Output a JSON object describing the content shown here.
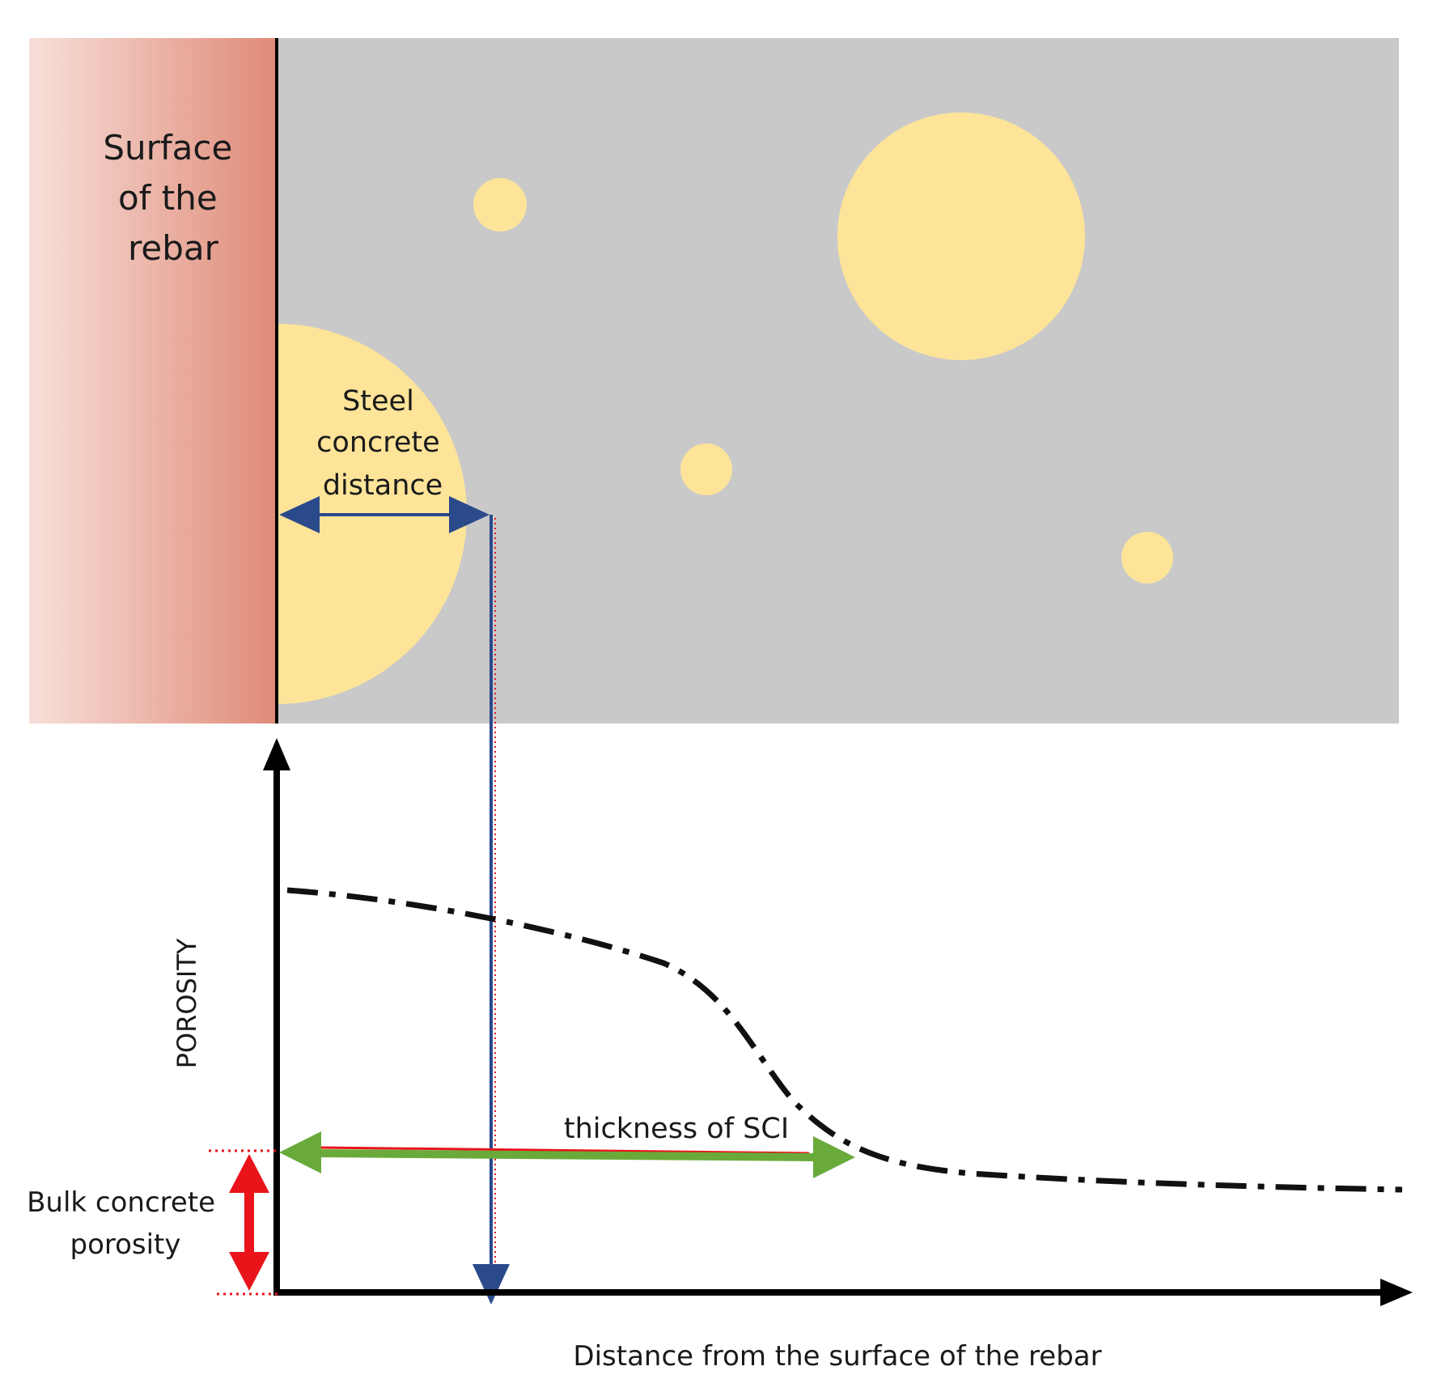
{
  "labels": {
    "rebar_surface": [
      "Surface",
      "of the",
      "rebar"
    ],
    "steel_concrete_distance": [
      "Steel",
      "concrete",
      "distance"
    ],
    "y_axis": "POROSITY",
    "x_axis": "Distance from the surface of the rebar",
    "sci_thickness": "thickness of SCI",
    "bulk_porosity": [
      "Bulk concrete",
      "porosity"
    ]
  },
  "colors": {
    "rebar_gradient_start": "#f6dfd9",
    "rebar_gradient_end": "#e08b78",
    "concrete": "#c9c9c9",
    "void": "#fde499",
    "distance_arrow": "#2b4a8c",
    "sci_arrow": "#6aaa3a",
    "bulk_arrow": "#e8141a",
    "axis": "#000000"
  }
}
